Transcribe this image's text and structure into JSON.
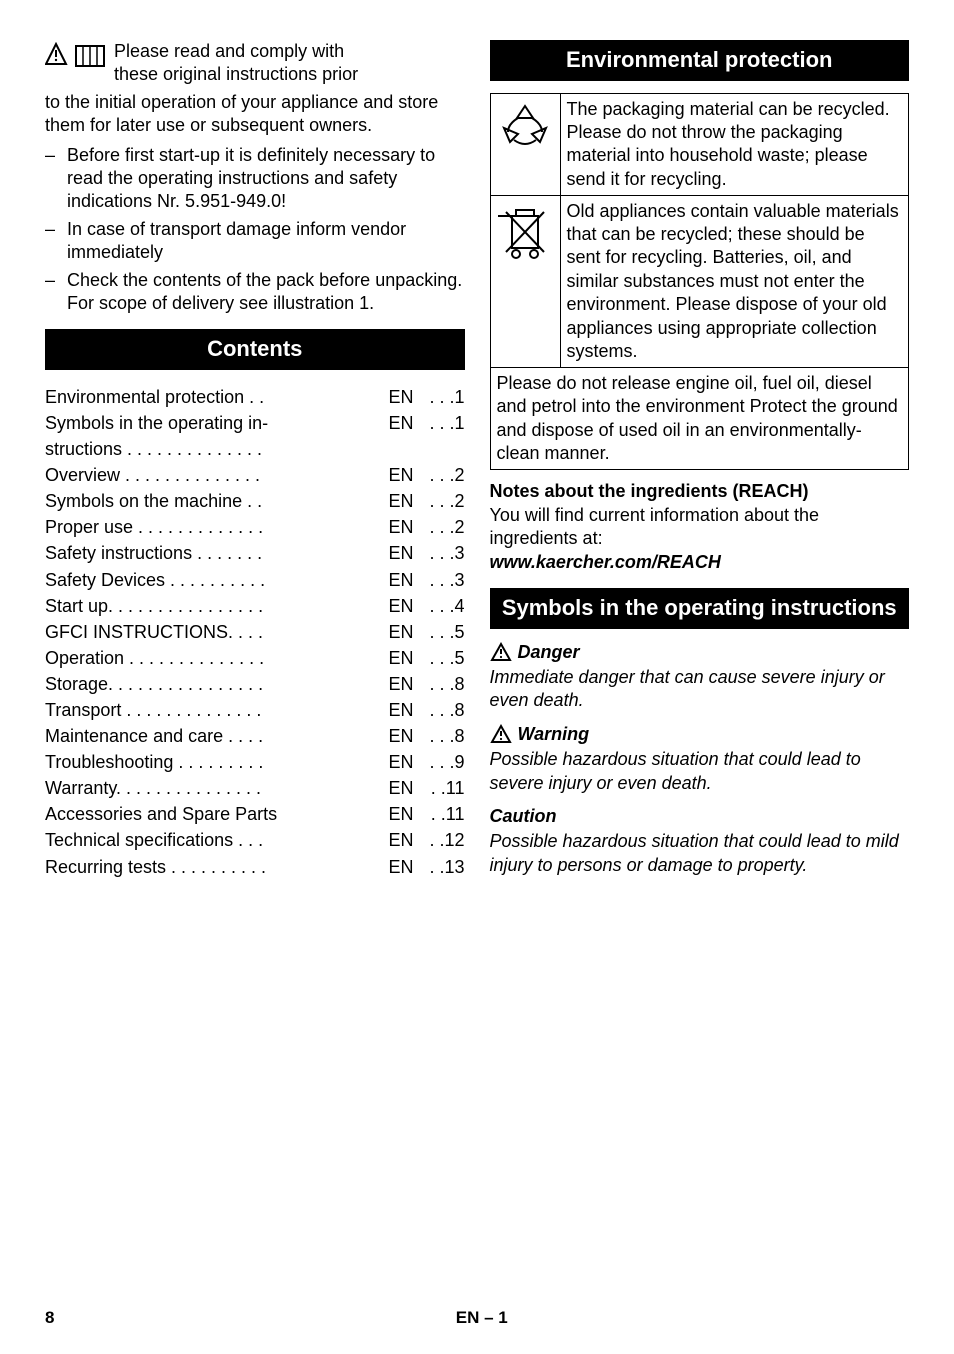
{
  "intro": {
    "line1": "Please read and comply with",
    "line2": "these original instructions prior",
    "rest": "to the initial operation of your appliance and store them for later use or subsequent owners.",
    "bullets": [
      "Before first start-up it is definitely necessary to read the operating instructions and safety indications Nr. 5.951-949.0!",
      "In case of transport damage inform vendor immediately",
      "Check the contents of the pack before unpacking. For scope of delivery see illustration 1."
    ]
  },
  "headers": {
    "contents": "Contents",
    "env": "Environmental protection",
    "symbols": "Symbols in the operating instructions"
  },
  "toc": [
    {
      "label": "Environmental protection . .",
      "lang": "EN",
      "page": ". . .1"
    },
    {
      "label": "Symbols in the operating instructions  . . . . . . . . . . . . . .",
      "lang": "EN",
      "page": ". . .1",
      "multiline": true
    },
    {
      "label": "Overview  . . . . . . . . . . . . . .",
      "lang": "EN",
      "page": ". . .2"
    },
    {
      "label": "Symbols on the machine . .",
      "lang": "EN",
      "page": ". . .2"
    },
    {
      "label": "Proper use . . . . . . . . . . . . .",
      "lang": "EN",
      "page": ". . .2"
    },
    {
      "label": "Safety instructions . . . . . . .",
      "lang": "EN",
      "page": ". . .3"
    },
    {
      "label": "Safety Devices . . . . . . . . . .",
      "lang": "EN",
      "page": ". . .3"
    },
    {
      "label": "Start up. . . . . . . . . . . . . . . .",
      "lang": "EN",
      "page": ". . .4"
    },
    {
      "label": "GFCI INSTRUCTIONS. . . .",
      "lang": "EN",
      "page": ". . .5"
    },
    {
      "label": "Operation . . . . . . . . . . . . . .",
      "lang": "EN",
      "page": ". . .5"
    },
    {
      "label": "Storage. . . . . . . . . . . . . . . .",
      "lang": "EN",
      "page": ". . .8"
    },
    {
      "label": "Transport  . . . . . . . . . . . . . .",
      "lang": "EN",
      "page": ". . .8"
    },
    {
      "label": "Maintenance and care . . . .",
      "lang": "EN",
      "page": ". . .8"
    },
    {
      "label": "Troubleshooting . . . . . . . . .",
      "lang": "EN",
      "page": ". . .9"
    },
    {
      "label": "Warranty. . . . . . . . . . . . . . .",
      "lang": "EN",
      "page": ". .11"
    },
    {
      "label": "Accessories and Spare Parts",
      "lang": "EN",
      "page": ". .11"
    },
    {
      "label": "Technical specifications . . .",
      "lang": "EN",
      "page": ". .12"
    },
    {
      "label": "Recurring tests . . . . . . . . . .",
      "lang": "EN",
      "page": ". .13"
    }
  ],
  "env": {
    "box1": "The packaging material can be recycled. Please do not throw the packaging material into household waste; please send it for recycling.",
    "box2": "Old appliances contain valuable materials that can be recycled; these should be sent for recycling. Batteries, oil, and similar substances must not enter the environment. Please dispose of your old appliances using appropriate collection systems.",
    "warn": "Please do not release engine oil, fuel oil, diesel and petrol into the environment Protect the ground and dispose of used oil in an environmentally-clean manner.",
    "reach_heading": "Notes about the ingredients (REACH)",
    "reach_text": "You will find current information about the ingredients at:",
    "reach_url": "www.kaercher.com/REACH"
  },
  "hazards": {
    "danger_label": "Danger",
    "danger_text": "Immediate danger that can cause severe injury or even death.",
    "warning_label": "Warning",
    "warning_text": "Possible hazardous situation that could lead to severe injury or even death.",
    "caution_label": "Caution",
    "caution_text": "Possible hazardous situation that could lead to mild injury to persons or damage to property."
  },
  "footer": {
    "pagenum": "8",
    "langpage": "EN – 1"
  }
}
